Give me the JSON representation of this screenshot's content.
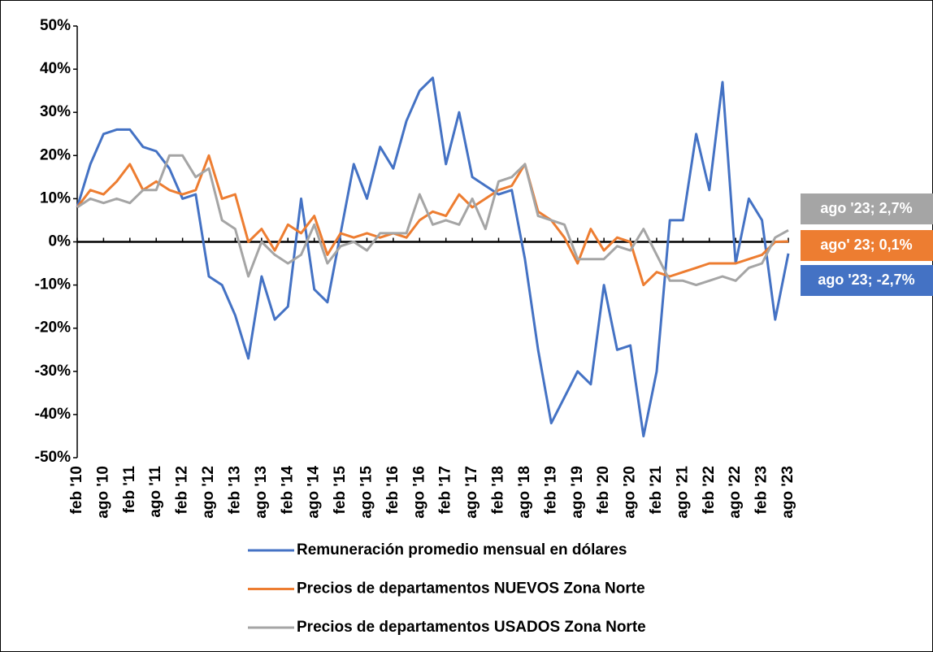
{
  "chart_data": {
    "type": "line",
    "categories": [
      "feb '10",
      null,
      "ago '10",
      null,
      "feb '11",
      null,
      "ago '11",
      null,
      "feb '12",
      null,
      "ago '12",
      null,
      "feb '13",
      null,
      "ago '13",
      null,
      "feb '14",
      null,
      "ago '14",
      null,
      "feb '15",
      null,
      "ago '15",
      null,
      "feb '16",
      null,
      "ago '16",
      null,
      "feb '17",
      null,
      "ago '17",
      null,
      "feb '18",
      null,
      "ago '18",
      null,
      "feb '19",
      null,
      "ago '19",
      null,
      "feb '20",
      null,
      "ago '20",
      null,
      "feb '21",
      null,
      "ago '21",
      null,
      "feb '22",
      null,
      "ago '22",
      null,
      "feb '23",
      null,
      "ago '23"
    ],
    "series": [
      {
        "name": "Remuneración promedio mensual en dólares",
        "color": "#4472c4",
        "values": [
          8,
          18,
          25,
          26,
          26,
          22,
          21,
          17,
          10,
          11,
          -8,
          -10,
          -17,
          -27,
          -8,
          -18,
          -15,
          10,
          -11,
          -14,
          2,
          18,
          10,
          22,
          17,
          28,
          35,
          38,
          18,
          30,
          15,
          13,
          11,
          12,
          -4,
          -25,
          -42,
          -36,
          -30,
          -33,
          -10,
          -25,
          -24,
          -45,
          -30,
          5,
          5,
          25,
          12,
          37,
          -5,
          10,
          5,
          -18,
          -2.7
        ]
      },
      {
        "name": "Precios de departamentos NUEVOS Zona Norte",
        "color": "#ed7d31",
        "values": [
          8,
          12,
          11,
          14,
          18,
          12,
          14,
          12,
          11,
          12,
          20,
          10,
          11,
          0,
          3,
          -2,
          4,
          2,
          6,
          -3,
          2,
          1,
          2,
          1,
          2,
          1,
          5,
          7,
          6,
          11,
          8,
          10,
          12,
          13,
          18,
          7,
          5,
          1,
          -5,
          3,
          -2,
          1,
          0,
          -10,
          -7,
          -8,
          -7,
          -6,
          -5,
          -5,
          -5,
          -4,
          -3,
          0,
          0.1
        ]
      },
      {
        "name": "Precios de departamentos USADOS Zona Norte",
        "color": "#a5a5a5",
        "values": [
          8,
          10,
          9,
          10,
          9,
          12,
          12,
          20,
          20,
          15,
          17,
          5,
          3,
          -8,
          0,
          -3,
          -5,
          -3,
          4,
          -5,
          -1,
          0,
          -2,
          2,
          2,
          2,
          11,
          4,
          5,
          4,
          10,
          3,
          14,
          15,
          18,
          6,
          5,
          4,
          -4,
          -4,
          -4,
          -1,
          -2,
          3,
          -3,
          -9,
          -9,
          -10,
          -9,
          -8,
          -9,
          -6,
          -5,
          1,
          2.7
        ]
      }
    ],
    "ylim": [
      -50,
      50
    ],
    "yticks": [
      {
        "value": -50,
        "label": "-50%"
      },
      {
        "value": -40,
        "label": "-40%"
      },
      {
        "value": -30,
        "label": "-30%"
      },
      {
        "value": -20,
        "label": "-20%"
      },
      {
        "value": -10,
        "label": "-10%"
      },
      {
        "value": 0,
        "label": "0%"
      },
      {
        "value": 10,
        "label": "10%"
      },
      {
        "value": 20,
        "label": "20%"
      },
      {
        "value": 30,
        "label": "30%"
      },
      {
        "value": 40,
        "label": "40%"
      },
      {
        "value": 50,
        "label": "50%"
      }
    ],
    "grid": false,
    "annotations": [
      {
        "text": "ago '23; 2,7%",
        "color": "#a5a5a5"
      },
      {
        "text": "ago' 23; 0,1%",
        "color": "#ed7d31"
      },
      {
        "text": "ago '23; -2,7%",
        "color": "#4472c4"
      }
    ]
  }
}
